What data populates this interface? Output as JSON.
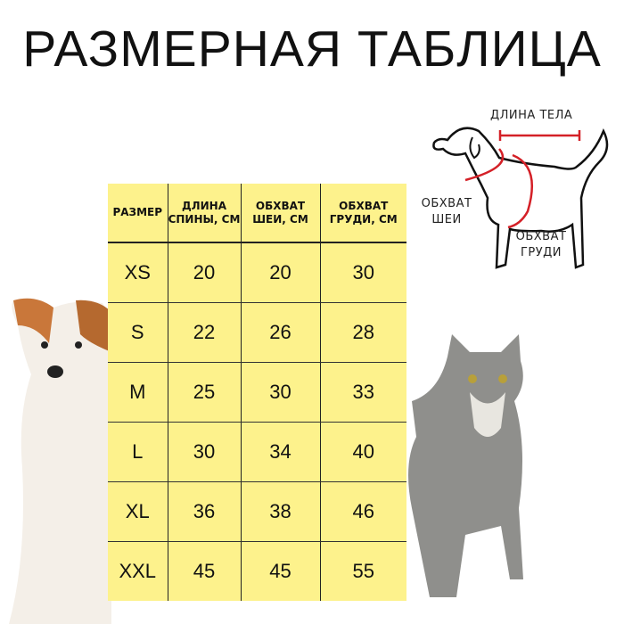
{
  "title": "РАЗМЕРНАЯ ТАБЛИЦА",
  "table": {
    "headers": [
      "РАЗМЕР",
      "ДЛИНА СПИНЫ, СМ",
      "ОБХВАТ ШЕИ, СМ",
      "ОБХВАТ ГРУДИ, СМ"
    ],
    "rows": [
      [
        "XS",
        "20",
        "20",
        "30"
      ],
      [
        "S",
        "22",
        "26",
        "28"
      ],
      [
        "M",
        "25",
        "30",
        "33"
      ],
      [
        "L",
        "30",
        "34",
        "40"
      ],
      [
        "XL",
        "36",
        "38",
        "46"
      ],
      [
        "XXL",
        "45",
        "45",
        "55"
      ]
    ],
    "background": "#fdf28c"
  },
  "diagram": {
    "body_length": "ДЛИНА ТЕЛА",
    "neck_girth": "ОБХВАТ ШЕИ",
    "chest_girth": "ОБХВАТ ГРУДИ",
    "accent_color": "#d42027"
  }
}
